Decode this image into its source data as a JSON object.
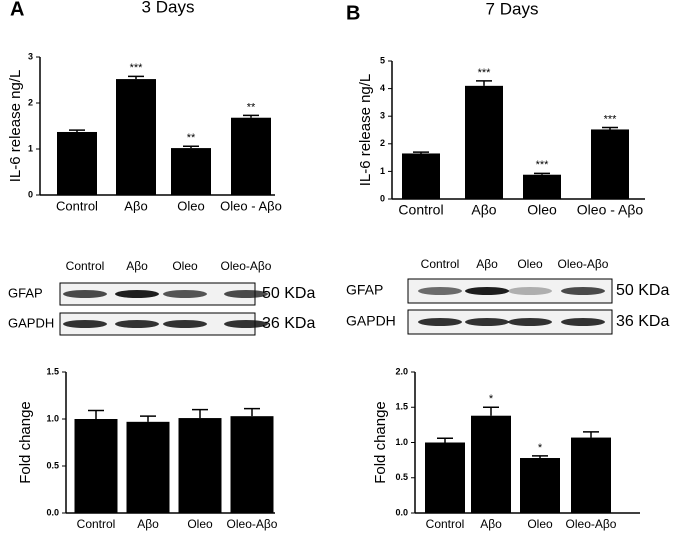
{
  "panels": [
    "A",
    "B"
  ],
  "chart_data": [
    {
      "type": "bar",
      "title": "3 Days",
      "y_label": "IL-6 release ng/L",
      "categories": [
        "Control",
        "Aβo",
        "Oleo",
        "Oleo - Aβo"
      ],
      "values": [
        1.37,
        2.52,
        1.02,
        1.68
      ],
      "errors": [
        0.04,
        0.06,
        0.04,
        0.05
      ],
      "annotations": [
        null,
        "***",
        "**",
        "**"
      ],
      "color": "#000000",
      "ylim": [
        0,
        3
      ],
      "yticks": [
        0,
        1,
        2,
        3
      ]
    },
    {
      "type": "bar",
      "title": "7 Days",
      "y_label": "IL-6 release ng/L",
      "categories": [
        "Control",
        "Aβo",
        "Oleo",
        "Oleo - Aβo"
      ],
      "values": [
        1.65,
        4.1,
        0.88,
        2.52
      ],
      "errors": [
        0.05,
        0.18,
        0.05,
        0.07
      ],
      "annotations": [
        null,
        "***",
        "***",
        "***"
      ],
      "color": "#000000",
      "ylim": [
        0,
        5
      ],
      "yticks": [
        0,
        1,
        2,
        3,
        4,
        5
      ]
    },
    {
      "type": "bar",
      "y_label": "Fold change",
      "categories": [
        "Control",
        "Aβo",
        "Oleo",
        "Oleo-Aβo"
      ],
      "values": [
        1.0,
        0.97,
        1.01,
        1.03
      ],
      "errors": [
        0.09,
        0.06,
        0.09,
        0.08
      ],
      "annotations": [
        null,
        null,
        null,
        null
      ],
      "color": "#000000",
      "ylim": [
        0,
        1.5
      ],
      "yticks": [
        {
          "value": 0,
          "label": "0.0"
        },
        {
          "value": 0.5,
          "label": "0.5"
        },
        {
          "value": 1,
          "label": "1.0"
        },
        {
          "value": 1.5,
          "label": "1.5"
        }
      ]
    },
    {
      "type": "bar",
      "y_label": "Fold change",
      "categories": [
        "Control",
        "Aβo",
        "Oleo",
        "Oleo-Aβo"
      ],
      "values": [
        1.0,
        1.38,
        0.78,
        1.07
      ],
      "errors": [
        0.06,
        0.12,
        0.03,
        0.08
      ],
      "annotations": [
        null,
        "*",
        "*",
        null
      ],
      "color": "#000000",
      "ylim": [
        0,
        2
      ],
      "yticks": [
        {
          "value": 0,
          "label": "0.0"
        },
        {
          "value": 0.5,
          "label": "0.5"
        },
        {
          "value": 1,
          "label": "1.0"
        },
        {
          "value": 1.5,
          "label": "1.5"
        },
        {
          "value": 2,
          "label": "2.0"
        }
      ]
    }
  ],
  "blots": [
    {
      "lanes": [
        "Control",
        "Aβo",
        "Oleo",
        "Oleo-Aβo"
      ],
      "rows": [
        {
          "name": "GFAP",
          "size": "50 KDa"
        },
        {
          "name": "GAPDH",
          "size": "36 KDa"
        }
      ]
    },
    {
      "lanes": [
        "Control",
        "Aβo",
        "Oleo",
        "Oleo-Aβo"
      ],
      "rows": [
        {
          "name": "GFAP",
          "size": "50 KDa"
        },
        {
          "name": "GAPDH",
          "size": "36 KDa"
        }
      ]
    }
  ]
}
